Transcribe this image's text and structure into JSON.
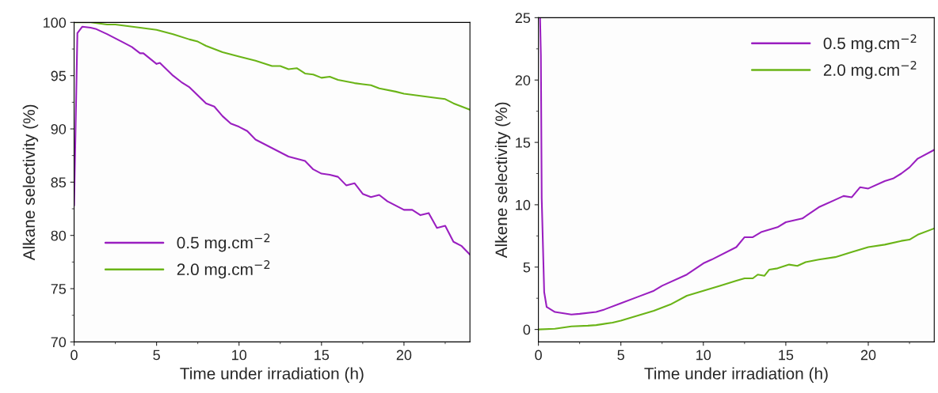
{
  "chart_data": [
    {
      "type": "line",
      "xlabel": "Time under irradiation (h)",
      "ylabel": "Alkane selectivity (%)",
      "xlim": [
        0,
        24
      ],
      "ylim": [
        70,
        100
      ],
      "xticks": [
        0,
        5,
        10,
        15,
        20
      ],
      "yticks": [
        70,
        75,
        80,
        85,
        90,
        95,
        100
      ],
      "legend": "bottom left",
      "grid": false,
      "series": [
        {
          "name": "0.5 mg.cm$^{−2}$",
          "color": "#9a1fc0",
          "x": [
            0,
            0.2,
            0.5,
            1,
            1.3,
            2,
            3,
            3.5,
            4,
            4.2,
            5,
            5.2,
            6,
            6.5,
            7,
            8,
            8.5,
            9,
            9.5,
            10,
            10.5,
            11,
            12,
            13,
            14,
            14.5,
            15,
            15.5,
            16,
            16.5,
            17,
            17.5,
            18,
            18.5,
            19,
            20,
            20.5,
            21,
            21.5,
            22,
            22.5,
            23,
            23.5,
            24
          ],
          "values": [
            82.8,
            99.0,
            99.6,
            99.5,
            99.4,
            98.9,
            98.1,
            97.7,
            97.1,
            97.1,
            96.1,
            96.2,
            95.0,
            94.4,
            93.9,
            92.4,
            92.1,
            91.2,
            90.5,
            90.2,
            89.8,
            89.0,
            88.2,
            87.4,
            87.0,
            86.2,
            85.8,
            85.7,
            85.5,
            84.7,
            84.9,
            83.9,
            83.6,
            83.8,
            83.2,
            82.4,
            82.4,
            81.9,
            82.1,
            80.7,
            80.9,
            79.4,
            79.0,
            78.2
          ]
        },
        {
          "name": "2.0 mg.cm$^{−2}$",
          "color": "#6ab417",
          "x": [
            0,
            1,
            2,
            2.5,
            4,
            5,
            6,
            7,
            7.5,
            8,
            9,
            10,
            11,
            12,
            12.5,
            13,
            13.5,
            14,
            14.5,
            15,
            15.5,
            16,
            17,
            17.5,
            18,
            18.5,
            19.5,
            20,
            21,
            22,
            22.5,
            23,
            23.5,
            24
          ],
          "values": [
            100,
            100,
            99.8,
            99.8,
            99.5,
            99.3,
            98.9,
            98.4,
            98.2,
            97.8,
            97.2,
            96.8,
            96.4,
            95.9,
            95.9,
            95.6,
            95.7,
            95.2,
            95.1,
            94.8,
            94.9,
            94.6,
            94.3,
            94.2,
            94.1,
            93.8,
            93.5,
            93.3,
            93.1,
            92.9,
            92.8,
            92.4,
            92.1,
            91.8
          ]
        }
      ]
    },
    {
      "type": "line",
      "xlabel": "Time under irradiation (h)",
      "ylabel": "Alkene selectivity (%)",
      "xlim": [
        0,
        24
      ],
      "ylim": [
        -1,
        25
      ],
      "xticks": [
        0,
        5,
        10,
        15,
        20
      ],
      "yticks": [
        0,
        5,
        10,
        15,
        20,
        25
      ],
      "legend": "top right",
      "grid": false,
      "series": [
        {
          "name": "0.5 mg.cm$^{−2}$",
          "color": "#9a1fc0",
          "x": [
            0.1,
            0.15,
            0.2,
            0.35,
            0.5,
            1,
            2,
            2.5,
            3.5,
            4,
            5,
            6,
            7,
            7.5,
            9,
            10,
            10.5,
            12,
            12.5,
            13,
            13.5,
            14.5,
            15,
            16,
            17,
            18,
            18.5,
            19,
            19.5,
            20,
            21,
            21.5,
            22,
            22.5,
            23,
            24
          ],
          "values": [
            25,
            22,
            10.5,
            3,
            1.8,
            1.4,
            1.2,
            1.25,
            1.4,
            1.6,
            2.1,
            2.6,
            3.1,
            3.5,
            4.4,
            5.3,
            5.6,
            6.6,
            7.4,
            7.4,
            7.8,
            8.2,
            8.6,
            8.9,
            9.8,
            10.4,
            10.7,
            10.6,
            11.4,
            11.3,
            11.9,
            12.1,
            12.5,
            13.0,
            13.7,
            14.4
          ]
        },
        {
          "name": "2.0 mg.cm$^{−2}$",
          "color": "#6ab417",
          "x": [
            0,
            1,
            2,
            3,
            3.5,
            4.5,
            5,
            6,
            7,
            8,
            9,
            10,
            11,
            12,
            12.5,
            13,
            13.3,
            13.7,
            14,
            14.5,
            15.2,
            15.7,
            16.2,
            17,
            18,
            19,
            20,
            21,
            22,
            22.5,
            23,
            24
          ],
          "values": [
            0,
            0.05,
            0.25,
            0.3,
            0.35,
            0.55,
            0.7,
            1.1,
            1.5,
            2.0,
            2.7,
            3.1,
            3.5,
            3.9,
            4.1,
            4.1,
            4.4,
            4.3,
            4.8,
            4.9,
            5.2,
            5.1,
            5.4,
            5.6,
            5.8,
            6.2,
            6.6,
            6.8,
            7.1,
            7.2,
            7.6,
            8.1
          ]
        }
      ]
    }
  ]
}
